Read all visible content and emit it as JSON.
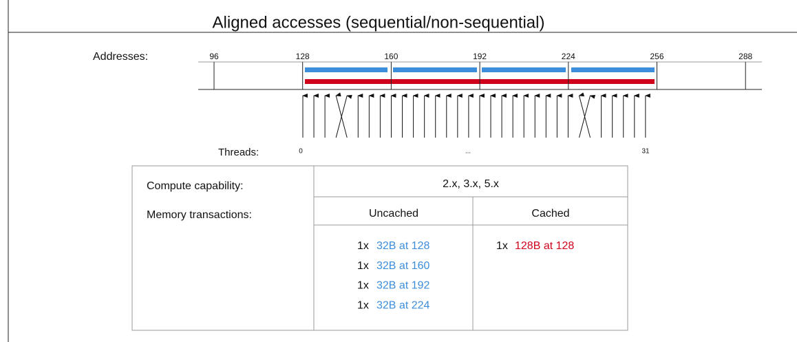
{
  "title": "Aligned accesses (sequential/non-sequential)",
  "addresses": {
    "label": "Addresses:",
    "ticks": [
      96,
      128,
      160,
      192,
      224,
      256,
      288
    ]
  },
  "threads": {
    "label": "Threads:",
    "first": "0",
    "middle": "...",
    "last": "31"
  },
  "table": {
    "capability_label": "Compute capability:",
    "capability": "2.x, 3.x, 5.x",
    "transactions_label": "Memory transactions:",
    "uncached": {
      "header": "Uncached",
      "rows": [
        {
          "count": "1x",
          "text": "32B at 128"
        },
        {
          "count": "1x",
          "text": "32B at 160"
        },
        {
          "count": "1x",
          "text": "32B at 192"
        },
        {
          "count": "1x",
          "text": "32B at 224"
        }
      ]
    },
    "cached": {
      "header": "Cached",
      "rows": [
        {
          "count": "1x",
          "text": "128B at 128"
        }
      ]
    }
  }
}
